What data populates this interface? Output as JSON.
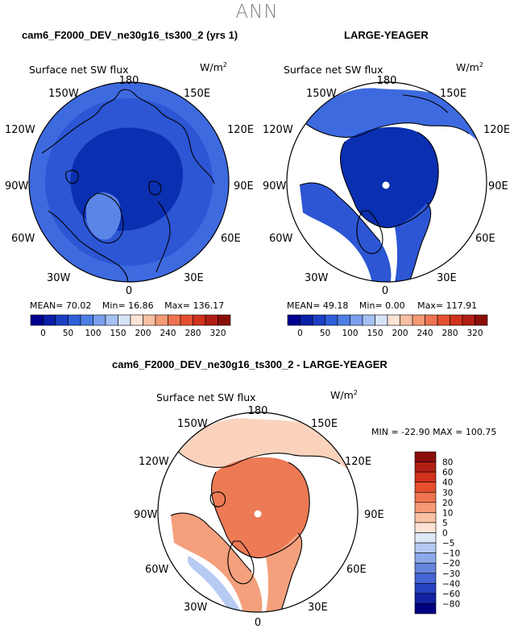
{
  "suptitle": "ANN",
  "panel1": {
    "title": "cam6_F2000_DEV_ne30g16_ts300_2 (yrs 1)",
    "variable": "Surface net SW flux",
    "units": "W/m",
    "units_exp": "2",
    "mean_label": "MEAN=",
    "mean": "70.02",
    "min_label": "Min=",
    "min": "16.86",
    "max_label": "Max=",
    "max": "136.17"
  },
  "panel2": {
    "title": "LARGE-YEAGER",
    "variable": "Surface net SW flux",
    "units": "W/m",
    "units_exp": "2",
    "mean_label": "MEAN=",
    "mean": "49.18",
    "min_label": "Min=",
    "min": "0.00",
    "max_label": "Max=",
    "max": "117.91"
  },
  "panel3": {
    "title": "cam6_F2000_DEV_ne30g16_ts300_2 - LARGE-YEAGER",
    "variable": "Surface net SW flux",
    "units": "W/m",
    "units_exp": "2",
    "minmax": "MIN = -22.90 MAX = 100.75"
  },
  "lon_labels": {
    "n": "180",
    "nw": "150W",
    "ne": "150E",
    "wnw": "120W",
    "ene": "120E",
    "w": "90W",
    "e": "90E",
    "wsw": "60W",
    "ese": "60E",
    "sw": "30W",
    "se": "30E",
    "s": "0"
  },
  "abs_colorbar": {
    "ticks": [
      "0",
      "50",
      "100",
      "150",
      "200",
      "240",
      "280",
      "320"
    ],
    "colors": [
      "#000090",
      "#0b1ea8",
      "#1c3fc4",
      "#2f5fd8",
      "#4d7ee6",
      "#7aa0ee",
      "#a6c2f5",
      "#d6e4fa",
      "#fde3d4",
      "#f9c0a3",
      "#f49a75",
      "#ee7451",
      "#e54f2e",
      "#d0321c",
      "#b01e12",
      "#8a0f0a"
    ]
  },
  "diff_colorbar": {
    "ticks": [
      "80",
      "60",
      "40",
      "30",
      "20",
      "10",
      "5",
      "0",
      "−5",
      "−10",
      "−20",
      "−30",
      "−40",
      "−60",
      "−80"
    ],
    "colors": [
      "#8a0f0a",
      "#b01e12",
      "#d0321c",
      "#e54f2e",
      "#ee7451",
      "#f49a75",
      "#f9c0a3",
      "#fde3d4",
      "#dfe8f6",
      "#b4caf2",
      "#8caaea",
      "#6686dd",
      "#4364d2",
      "#2642bf",
      "#1222a2",
      "#000080"
    ]
  },
  "map_colors": {
    "land": "#ffffff",
    "pole_dot": "#ffffff",
    "abs_low": "#0a2fb0",
    "abs_mid": "#2c56d4",
    "abs_edge": "#3e6ae0",
    "abs_light": "#5b85e6",
    "diff_pos": "#ec7a55",
    "diff_mid": "#f4a07d",
    "diff_light": "#fbd3bd",
    "diff_neg": "#b7cbf2"
  }
}
